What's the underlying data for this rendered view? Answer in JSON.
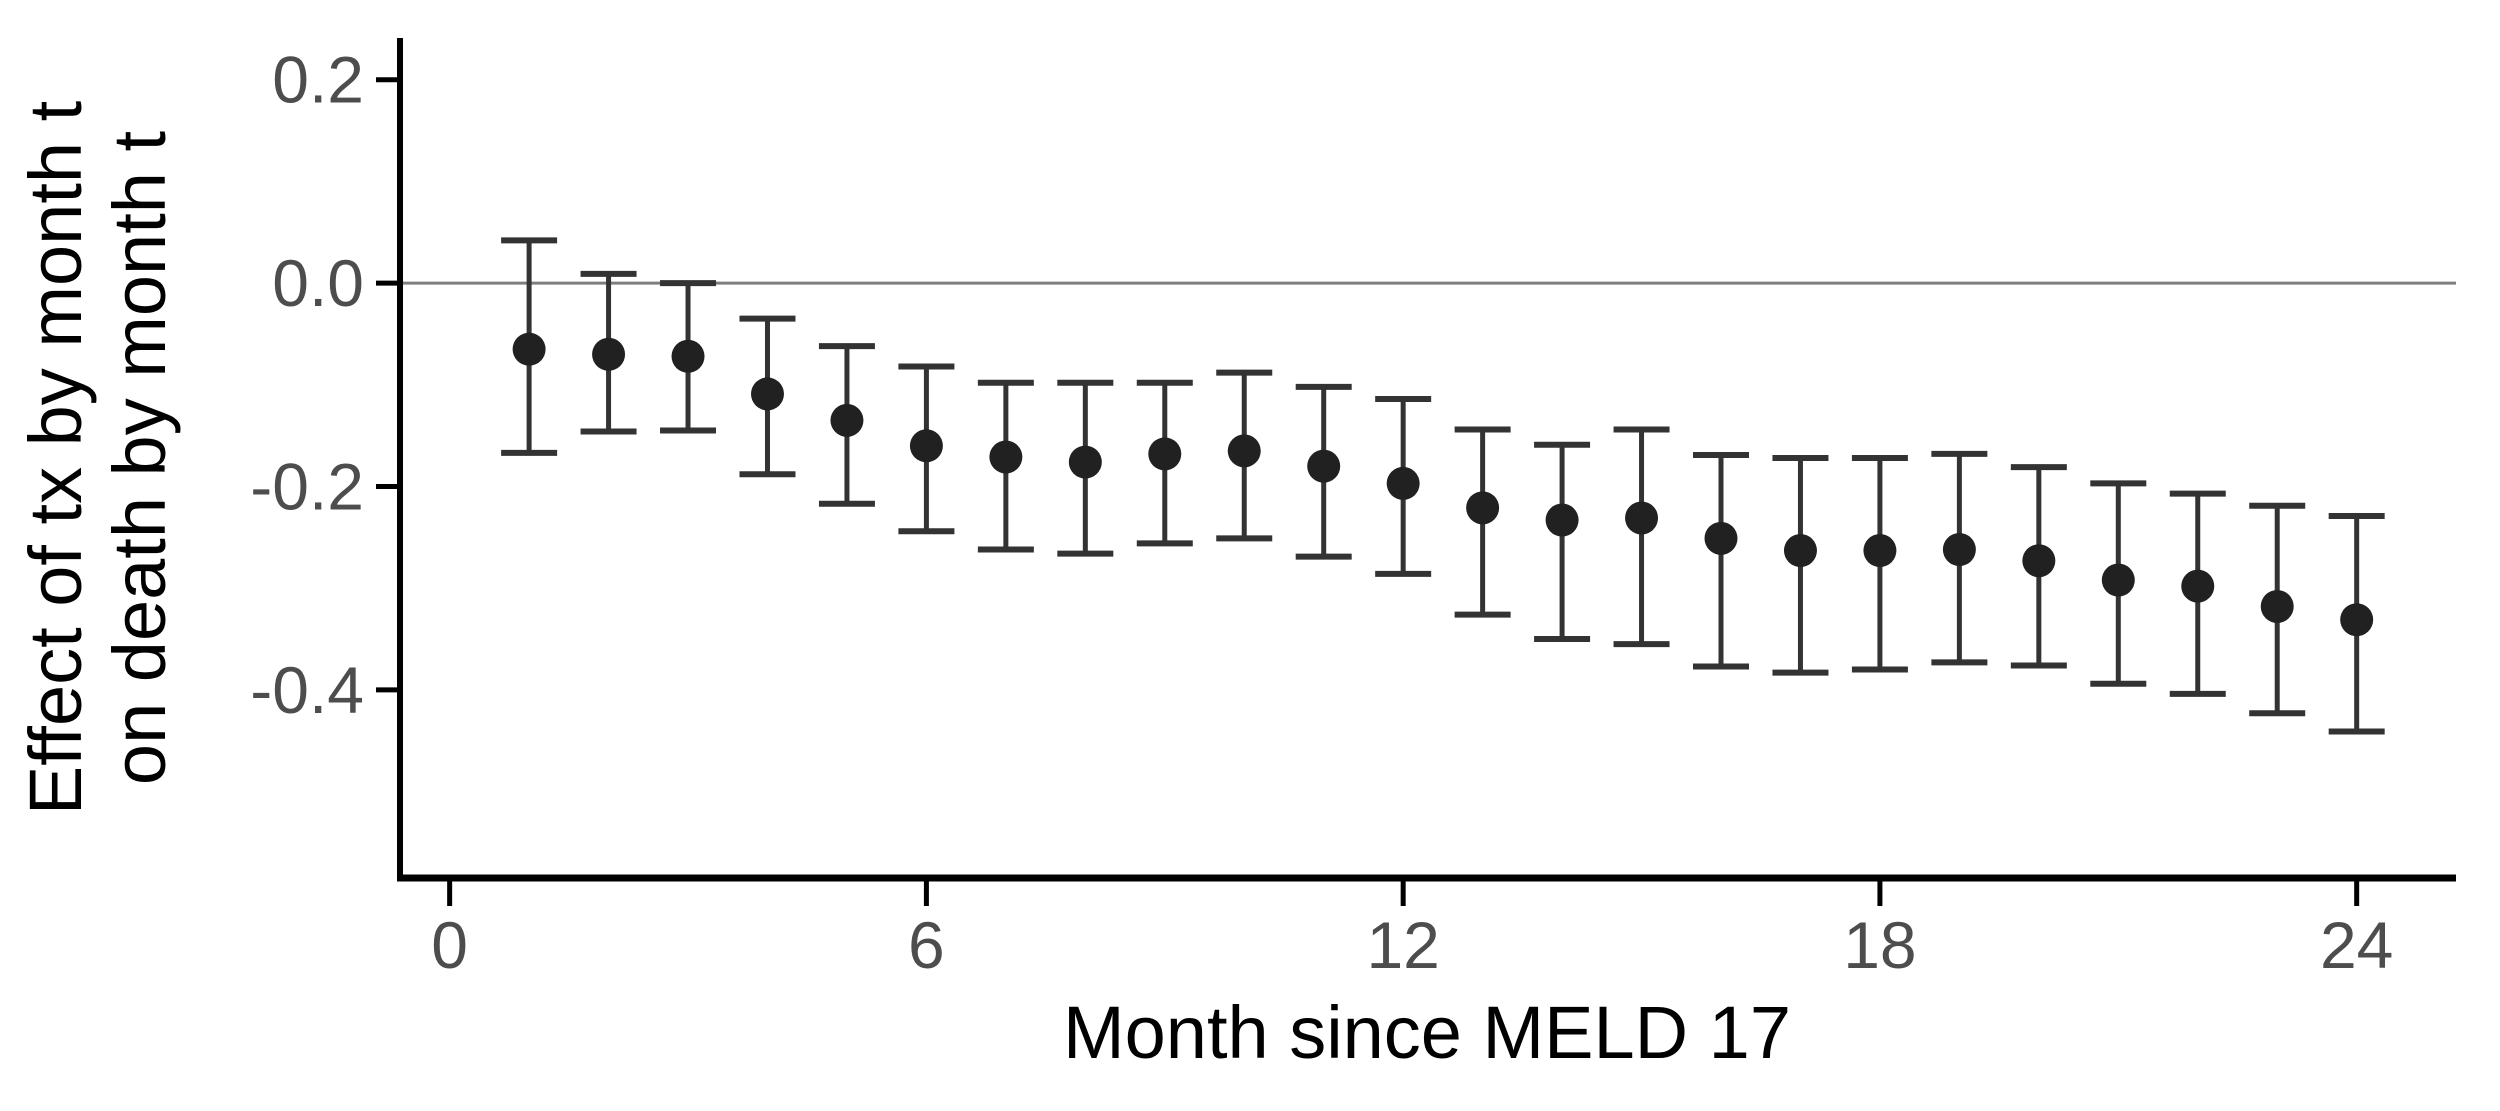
{
  "chart_data": {
    "type": "scatter",
    "subtype": "point-estimate-with-error-bars",
    "title": "",
    "xlabel": "Month since MELD 17",
    "ylabel_line1": "Effect of tx by month t",
    "ylabel_line2": "on death by month t",
    "x_ticks": {
      "values": [
        0,
        6,
        12,
        18,
        24
      ],
      "labels": [
        "0",
        "6",
        "12",
        "18",
        "24"
      ]
    },
    "y_ticks": {
      "values": [
        0.2,
        0.0,
        -0.2,
        -0.4
      ],
      "labels": [
        "0.2",
        "0.0",
        "-0.2",
        "-0.4"
      ]
    },
    "xlim": [
      -0.65,
      25.25
    ],
    "ylim": [
      -0.585,
      0.241
    ],
    "zero_reference_line": 0.0,
    "grid": false,
    "legend_position": "none",
    "series": [
      {
        "name": "effect-estimate-95ci",
        "x": [
          1,
          2,
          3,
          4,
          5,
          6,
          7,
          8,
          9,
          10,
          11,
          12,
          13,
          14,
          15,
          16,
          17,
          18,
          19,
          20,
          21,
          22,
          23,
          24
        ],
        "y": [
          -0.065,
          -0.07,
          -0.072,
          -0.109,
          -0.135,
          -0.16,
          -0.171,
          -0.176,
          -0.168,
          -0.165,
          -0.18,
          -0.197,
          -0.221,
          -0.233,
          -0.231,
          -0.251,
          -0.263,
          -0.263,
          -0.262,
          -0.273,
          -0.292,
          -0.298,
          -0.318,
          -0.331
        ],
        "ci_low": [
          -0.167,
          -0.146,
          -0.145,
          -0.188,
          -0.217,
          -0.244,
          -0.262,
          -0.266,
          -0.256,
          -0.251,
          -0.269,
          -0.286,
          -0.326,
          -0.35,
          -0.355,
          -0.377,
          -0.383,
          -0.38,
          -0.373,
          -0.376,
          -0.394,
          -0.404,
          -0.423,
          -0.441
        ],
        "ci_high": [
          0.042,
          0.009,
          0.0,
          -0.035,
          -0.062,
          -0.082,
          -0.098,
          -0.098,
          -0.098,
          -0.088,
          -0.102,
          -0.114,
          -0.144,
          -0.159,
          -0.144,
          -0.169,
          -0.172,
          -0.172,
          -0.168,
          -0.181,
          -0.197,
          -0.207,
          -0.219,
          -0.229
        ]
      }
    ],
    "colors": {
      "point": "#212121",
      "error_bar": "#333333",
      "axis_line": "#000000",
      "tick_label": "#4d4d4d",
      "axis_title": "#000000",
      "zero_line": "#7f7f7f",
      "background": "#ffffff"
    }
  }
}
